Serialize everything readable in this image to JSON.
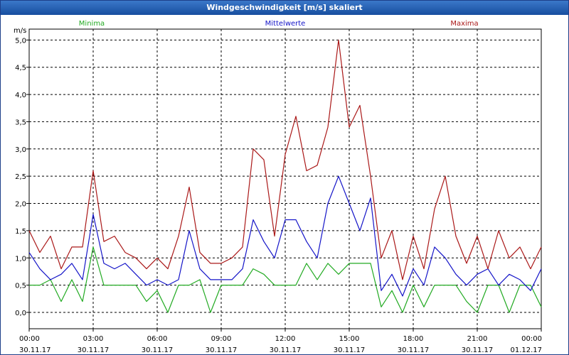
{
  "window": {
    "title": "Windgeschwindigkeit [m/s] skaliert"
  },
  "chart_data": {
    "type": "line",
    "title": "Windgeschwindigkeit [m/s] skaliert",
    "ylabel": "m/s",
    "xlabel": "",
    "ylim": [
      -0.3,
      5.2
    ],
    "xlim": [
      0,
      24
    ],
    "grid": true,
    "y_ticks": [
      0,
      0.5,
      1,
      1.5,
      2,
      2.5,
      3,
      3.5,
      4,
      4.5,
      5
    ],
    "y_tick_labels": [
      "0,0",
      "0,5",
      "1,0",
      "1,5",
      "2,0",
      "2,5",
      "3,0",
      "3,5",
      "4,0",
      "4,5",
      "5,0"
    ],
    "x_ticks": [
      {
        "hour": 0,
        "time": "00:00",
        "date": "30.11.17"
      },
      {
        "hour": 3,
        "time": "03:00",
        "date": "30.11.17"
      },
      {
        "hour": 6,
        "time": "06:00",
        "date": "30.11.17"
      },
      {
        "hour": 9,
        "time": "09:00",
        "date": "30.11.17"
      },
      {
        "hour": 12,
        "time": "12:00",
        "date": "30.11.17"
      },
      {
        "hour": 15,
        "time": "15:00",
        "date": "30.11.17"
      },
      {
        "hour": 18,
        "time": "18:00",
        "date": "30.11.17"
      },
      {
        "hour": 21,
        "time": "21:00",
        "date": "30.11.17"
      },
      {
        "hour": 24,
        "time": "00:00",
        "date": "01.12.17"
      }
    ],
    "x": [
      0,
      0.5,
      1,
      1.5,
      2,
      2.5,
      3,
      3.5,
      4,
      4.5,
      5,
      5.5,
      6,
      6.5,
      7,
      7.5,
      8,
      8.5,
      9,
      9.5,
      10,
      10.5,
      11,
      11.5,
      12,
      12.5,
      13,
      13.5,
      14,
      14.5,
      15,
      15.5,
      16,
      16.5,
      17,
      17.5,
      18,
      18.5,
      19,
      19.5,
      20,
      20.5,
      21,
      21.5,
      22,
      22.5,
      23,
      23.5,
      24
    ],
    "series": [
      {
        "name": "Minima",
        "label_position": "left",
        "color": "#22aa22",
        "values": [
          0.5,
          0.5,
          0.6,
          0.2,
          0.6,
          0.2,
          1.2,
          0.5,
          0.5,
          0.5,
          0.5,
          0.2,
          0.4,
          0.0,
          0.5,
          0.5,
          0.6,
          0.0,
          0.5,
          0.5,
          0.5,
          0.8,
          0.7,
          0.5,
          0.5,
          0.5,
          0.9,
          0.6,
          0.9,
          0.7,
          0.9,
          0.9,
          0.9,
          0.1,
          0.4,
          0.0,
          0.5,
          0.1,
          0.5,
          0.5,
          0.5,
          0.2,
          0.0,
          0.5,
          0.5,
          0.0,
          0.5,
          0.5,
          0.1
        ]
      },
      {
        "name": "Mittelwerte",
        "label_position": "center",
        "color": "#1515c8",
        "values": [
          1.1,
          0.8,
          0.6,
          0.7,
          0.9,
          0.6,
          1.8,
          0.9,
          0.8,
          0.9,
          0.7,
          0.5,
          0.6,
          0.5,
          0.6,
          1.5,
          0.8,
          0.6,
          0.6,
          0.6,
          0.8,
          1.7,
          1.3,
          1.0,
          1.7,
          1.7,
          1.3,
          1.0,
          2.0,
          2.5,
          2.0,
          1.5,
          2.1,
          0.4,
          0.7,
          0.3,
          0.8,
          0.5,
          1.2,
          1.0,
          0.7,
          0.5,
          0.7,
          0.8,
          0.5,
          0.7,
          0.6,
          0.4,
          0.8
        ]
      },
      {
        "name": "Maxima",
        "label_position": "right",
        "color": "#aa1818",
        "values": [
          1.5,
          1.1,
          1.4,
          0.8,
          1.2,
          1.2,
          2.6,
          1.3,
          1.4,
          1.1,
          1.0,
          0.8,
          1.0,
          0.8,
          1.4,
          2.3,
          1.1,
          0.9,
          0.9,
          1.0,
          1.2,
          3.0,
          2.8,
          1.4,
          2.9,
          3.6,
          2.6,
          2.7,
          3.4,
          5.0,
          3.4,
          3.8,
          2.5,
          1.0,
          1.5,
          0.6,
          1.4,
          0.8,
          1.9,
          2.5,
          1.4,
          0.9,
          1.4,
          0.8,
          1.5,
          1.0,
          1.2,
          0.8,
          1.2
        ]
      }
    ]
  }
}
